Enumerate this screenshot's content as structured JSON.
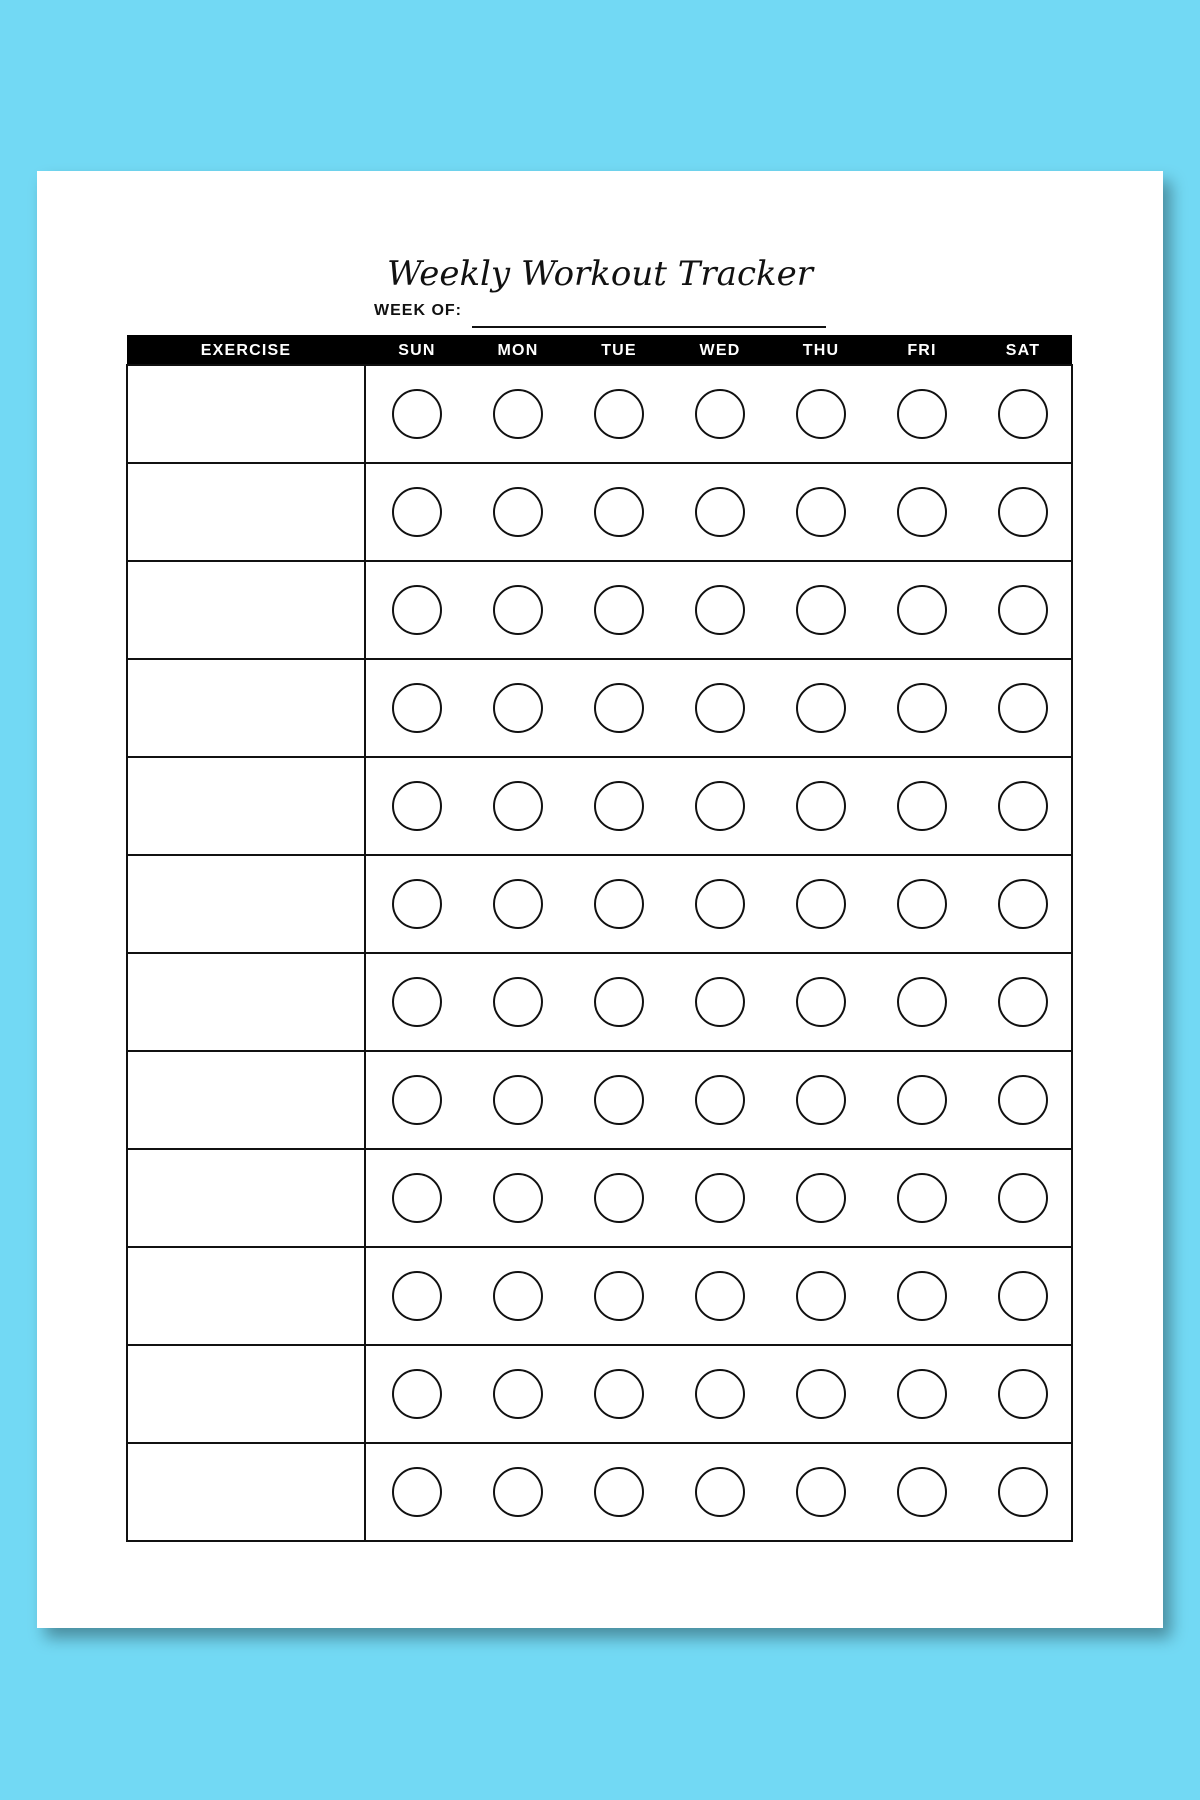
{
  "header": {
    "title": "Weekly Workout Tracker",
    "week_of_label": "WEEK OF:"
  },
  "table": {
    "columns": [
      "EXERCISE",
      "SUN",
      "MON",
      "TUE",
      "WED",
      "THU",
      "FRI",
      "SAT"
    ]
  }
}
